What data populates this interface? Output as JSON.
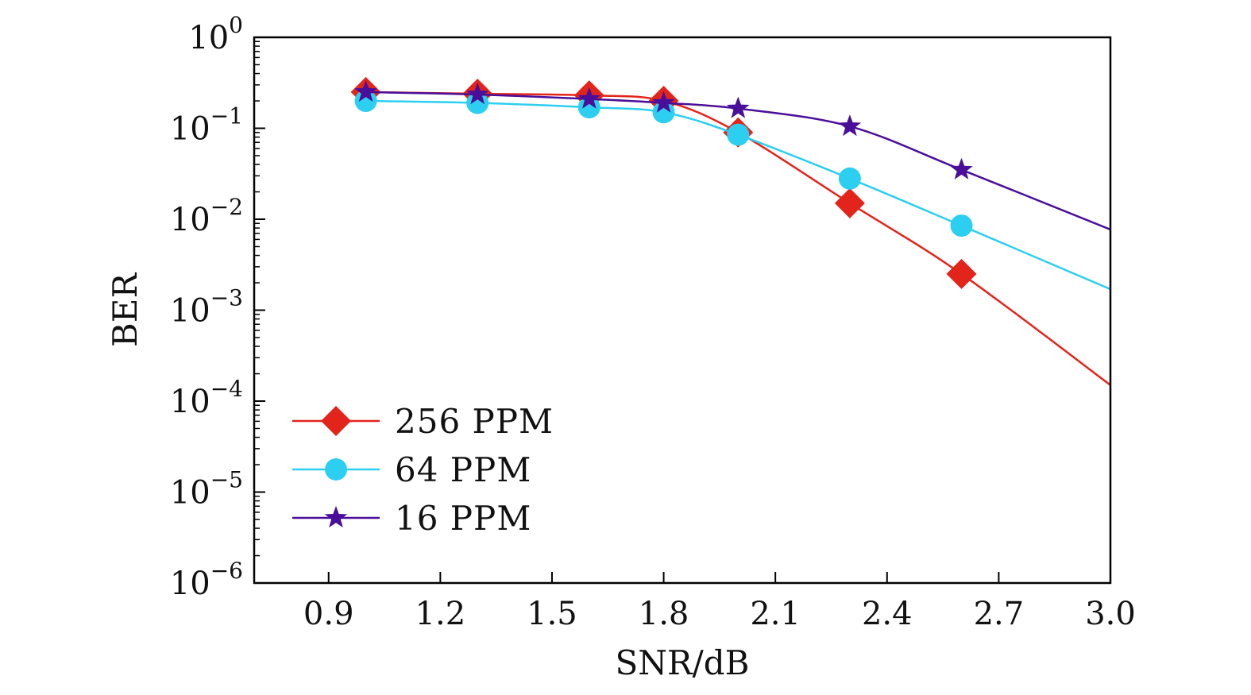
{
  "chart_data": {
    "type": "line",
    "xlabel": "SNR/dB",
    "ylabel": "BER",
    "x_scale": "linear",
    "y_scale": "log",
    "xlim": [
      0.7,
      3.0
    ],
    "ylim": [
      1e-06,
      1
    ],
    "x_ticks": [
      "0.9",
      "1.2",
      "1.5",
      "1.8",
      "2.1",
      "2.4",
      "2.7",
      "3.0"
    ],
    "y_ticks": [
      {
        "base": "10",
        "exp": "0"
      },
      {
        "base": "10",
        "exp": "−1"
      },
      {
        "base": "10",
        "exp": "−2"
      },
      {
        "base": "10",
        "exp": "−3"
      },
      {
        "base": "10",
        "exp": "−4"
      },
      {
        "base": "10",
        "exp": "−5"
      },
      {
        "base": "10",
        "exp": "−6"
      }
    ],
    "grid": false,
    "legend_position": "lower-left",
    "series": [
      {
        "name": "256 PPM",
        "color": "#e3241b",
        "marker": "diamond",
        "x": [
          1.0,
          1.3,
          1.6,
          1.8,
          2.0,
          2.3,
          2.6
        ],
        "y": [
          0.25,
          0.24,
          0.23,
          0.2,
          0.09,
          0.015,
          0.0025
        ],
        "curve_end": {
          "x": 3.0,
          "y": 0.00015
        }
      },
      {
        "name": "64 PPM",
        "color": "#2ccff0",
        "marker": "circle",
        "x": [
          1.0,
          1.3,
          1.6,
          1.8,
          2.0,
          2.3,
          2.6
        ],
        "y": [
          0.2,
          0.19,
          0.17,
          0.15,
          0.085,
          0.028,
          0.0085
        ],
        "curve_end": {
          "x": 3.0,
          "y": 0.0017
        }
      },
      {
        "name": "16 PPM",
        "color": "#4a0f99",
        "marker": "star",
        "x": [
          1.0,
          1.3,
          1.6,
          1.8,
          2.0,
          2.3,
          2.6
        ],
        "y": [
          0.25,
          0.235,
          0.21,
          0.19,
          0.165,
          0.105,
          0.035
        ],
        "curve_end": {
          "x": 3.0,
          "y": 0.0077
        }
      }
    ]
  }
}
